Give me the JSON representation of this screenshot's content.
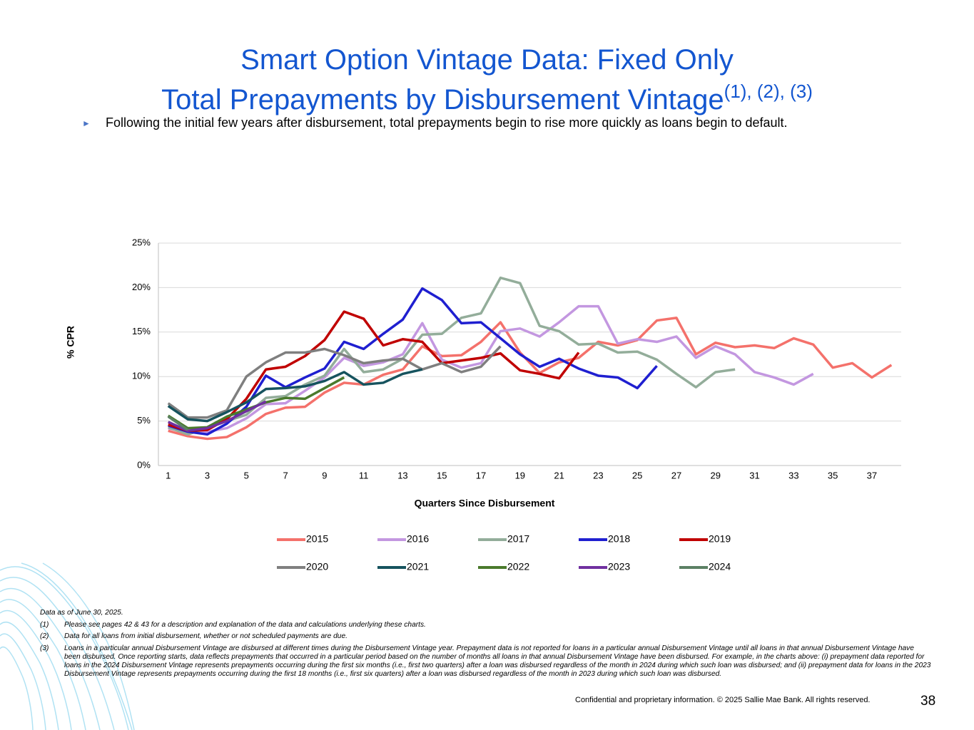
{
  "header": {
    "title_line1": "Smart Option Vintage Data: Fixed Only",
    "title_line2": "Total Prepayments by Disbursement Vintage",
    "title_superscript": "(1), (2), (3)"
  },
  "bullet": "Following the initial few years after disbursement, total prepayments begin to rise more quickly as loans begin to default.",
  "chart_data": {
    "type": "line",
    "y_label": "% CPR",
    "x_label": "Quarters Since Disbursement",
    "x": [
      1,
      2,
      3,
      4,
      5,
      6,
      7,
      8,
      9,
      10,
      11,
      12,
      13,
      14,
      15,
      16,
      17,
      18,
      19,
      20,
      21,
      22,
      23,
      24,
      25,
      26,
      27,
      28,
      29,
      30,
      31,
      32,
      33,
      34,
      35,
      36,
      37,
      38
    ],
    "xlim": [
      0.5,
      38.5
    ],
    "xticks": [
      1,
      3,
      5,
      7,
      9,
      11,
      13,
      15,
      17,
      19,
      21,
      23,
      25,
      27,
      29,
      31,
      33,
      35,
      37
    ],
    "ylim": [
      0,
      25
    ],
    "yticks": [
      {
        "value": 0,
        "label": "0%"
      },
      {
        "value": 5,
        "label": "5%"
      },
      {
        "value": 10,
        "label": "10%"
      },
      {
        "value": 15,
        "label": "15%"
      },
      {
        "value": 20,
        "label": "20%"
      },
      {
        "value": 25,
        "label": "25%"
      }
    ],
    "grid": true,
    "series": [
      {
        "name": "2015",
        "color": "#f4716b",
        "values": [
          3.9,
          3.3,
          3.0,
          3.2,
          4.3,
          5.8,
          6.5,
          6.6,
          8.2,
          9.3,
          9.1,
          10.2,
          10.8,
          13.4,
          12.3,
          12.4,
          13.9,
          16.1,
          12.7,
          10.4,
          11.6,
          12.1,
          13.9,
          13.5,
          14.1,
          16.3,
          16.6,
          12.5,
          13.8,
          13.3,
          13.5,
          13.2,
          14.3,
          13.6,
          11.0,
          11.5,
          9.9,
          11.3
        ]
      },
      {
        "name": "2016",
        "color": "#c397e0",
        "values": [
          4.2,
          3.7,
          3.8,
          4.2,
          5.3,
          6.9,
          7.0,
          8.4,
          9.9,
          12.1,
          11.2,
          11.6,
          12.5,
          16.0,
          11.9,
          11.0,
          11.5,
          15.1,
          15.4,
          14.5,
          16.1,
          17.9,
          17.9,
          13.7,
          14.2,
          13.9,
          14.5,
          12.1,
          13.4,
          12.5,
          10.5,
          9.9,
          9.1,
          10.3,
          null,
          null,
          null,
          null
        ]
      },
      {
        "name": "2017",
        "color": "#93ad9a",
        "values": [
          4.3,
          3.5,
          4.2,
          5.0,
          5.7,
          7.6,
          7.8,
          9.1,
          10.1,
          13.1,
          10.5,
          10.8,
          12.0,
          14.7,
          14.8,
          16.6,
          17.1,
          21.1,
          20.5,
          15.7,
          15.1,
          13.6,
          13.7,
          12.7,
          12.8,
          11.9,
          10.3,
          8.8,
          10.5,
          10.8,
          null,
          null,
          null,
          null,
          null,
          null,
          null,
          null
        ]
      },
      {
        "name": "2018",
        "color": "#1f1fd0",
        "values": [
          4.5,
          3.8,
          3.5,
          4.7,
          6.6,
          10.1,
          8.8,
          9.9,
          10.9,
          13.9,
          13.1,
          14.8,
          16.4,
          19.9,
          18.6,
          16.0,
          16.1,
          14.3,
          12.5,
          11.1,
          12.0,
          10.9,
          10.1,
          9.9,
          8.7,
          11.2,
          null,
          null,
          null,
          null,
          null,
          null,
          null,
          null,
          null,
          null,
          null,
          null
        ]
      },
      {
        "name": "2019",
        "color": "#c00000",
        "values": [
          4.6,
          3.9,
          4.0,
          5.2,
          7.5,
          10.8,
          11.1,
          12.3,
          14.1,
          17.3,
          16.5,
          13.5,
          14.2,
          13.9,
          11.5,
          11.8,
          12.1,
          12.6,
          10.7,
          10.3,
          9.8,
          12.7,
          null,
          null,
          null,
          null,
          null,
          null,
          null,
          null,
          null,
          null,
          null,
          null,
          null,
          null,
          null,
          null
        ]
      },
      {
        "name": "2020",
        "color": "#7f7f7f",
        "values": [
          7.0,
          5.4,
          5.4,
          6.2,
          10.0,
          11.6,
          12.7,
          12.7,
          13.1,
          12.4,
          11.5,
          11.8,
          12.0,
          10.8,
          11.5,
          10.5,
          11.1,
          13.4,
          null,
          null,
          null,
          null,
          null,
          null,
          null,
          null,
          null,
          null,
          null,
          null,
          null,
          null,
          null,
          null,
          null,
          null,
          null,
          null
        ]
      },
      {
        "name": "2021",
        "color": "#16535e",
        "values": [
          6.7,
          5.2,
          5.0,
          6.0,
          7.1,
          8.6,
          8.7,
          8.9,
          9.5,
          10.5,
          9.1,
          9.3,
          10.3,
          10.8,
          null,
          null,
          null,
          null,
          null,
          null,
          null,
          null,
          null,
          null,
          null,
          null,
          null,
          null,
          null,
          null,
          null,
          null,
          null,
          null,
          null,
          null,
          null,
          null
        ]
      },
      {
        "name": "2022",
        "color": "#4a7a2c",
        "values": [
          5.6,
          4.2,
          4.3,
          5.5,
          6.3,
          7.1,
          7.6,
          7.5,
          8.7,
          9.9,
          null,
          null,
          null,
          null,
          null,
          null,
          null,
          null,
          null,
          null,
          null,
          null,
          null,
          null,
          null,
          null,
          null,
          null,
          null,
          null,
          null,
          null,
          null,
          null,
          null,
          null,
          null,
          null
        ]
      },
      {
        "name": "2023",
        "color": "#7030a0",
        "values": [
          4.9,
          3.9,
          4.2,
          5.0,
          6.1,
          7.2,
          null,
          null,
          null,
          null,
          null,
          null,
          null,
          null,
          null,
          null,
          null,
          null,
          null,
          null,
          null,
          null,
          null,
          null,
          null,
          null,
          null,
          null,
          null,
          null,
          null,
          null,
          null,
          null,
          null,
          null,
          null,
          null
        ]
      },
      {
        "name": "2024",
        "color": "#5b8064",
        "values": [
          5.5,
          4.0,
          null,
          null,
          null,
          null,
          null,
          null,
          null,
          null,
          null,
          null,
          null,
          null,
          null,
          null,
          null,
          null,
          null,
          null,
          null,
          null,
          null,
          null,
          null,
          null,
          null,
          null,
          null,
          null,
          null,
          null,
          null,
          null,
          null,
          null,
          null,
          null
        ]
      }
    ]
  },
  "footnotes": {
    "as_of": "Data as of  June 30, 2025.",
    "items": [
      {
        "marker": "(1)",
        "text": "Please see pages 42 & 43 for a description and explanation of the data and calculations underlying these charts."
      },
      {
        "marker": "(2)",
        "text": "Data for all loans from initial disbursement, whether or not scheduled payments are due."
      },
      {
        "marker": "(3)",
        "text": "Loans in a particular annual Disbursement Vintage are disbursed at different times during the Disbursement Vintage year.  Prepayment data is not reported for loans in a particular annual Disbursement Vintage until all loans in that annual Disbursement Vintage have been disbursed.  Once reporting starts, data reflects prepayments that occurred in a particular period based on the number of months all loans in that annual Disbursement Vintage have been disbursed.  For example, in the charts above:  (i) prepayment data reported for loans in the 2024 Disbursement Vintage represents prepayments occurring during the first six months (i.e., first two quarters) after a loan was disbursed regardless of the month in 2024 during which such loan was disbursed; and (ii) prepayment data for loans in the 2023 Disbursement Vintage represents prepayments occurring during the first 18 months (i.e., first six quarters) after a loan was disbursed regardless of the month in 2023 during which such loan was disbursed."
      }
    ]
  },
  "footer": {
    "confidential": "Confidential and proprietary information. © 2025 Sallie Mae Bank. All rights reserved.",
    "page_number": "38"
  }
}
